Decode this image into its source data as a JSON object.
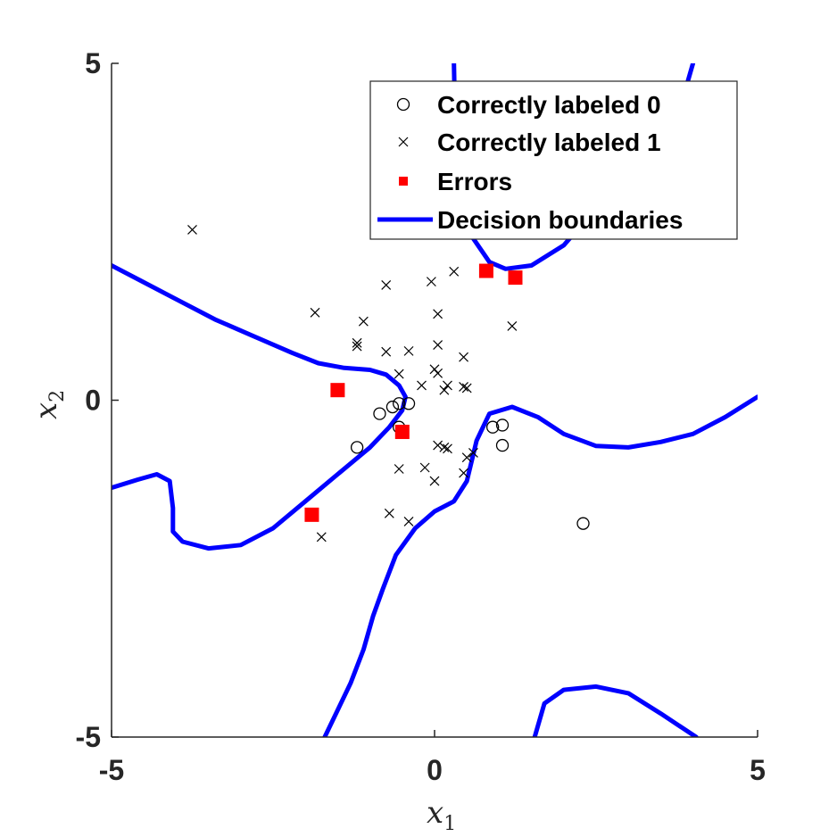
{
  "chart_data": {
    "type": "scatter",
    "xlabel": {
      "base": "x",
      "sub": "1"
    },
    "ylabel": {
      "base": "x",
      "sub": "2"
    },
    "xlim": [
      -5,
      5
    ],
    "ylim": [
      -5,
      5
    ],
    "xticks": [
      -5,
      0,
      5
    ],
    "yticks": [
      -5,
      0,
      5
    ],
    "grid": false,
    "legend_position": "top-right",
    "legend": [
      {
        "key": "class0",
        "label": "Correctly labeled 0",
        "marker": "circle"
      },
      {
        "key": "class1",
        "label": "Correctly labeled 1",
        "marker": "x"
      },
      {
        "key": "errors",
        "label": "Errors",
        "marker": "square"
      },
      {
        "key": "boundary",
        "label": "Decision boundaries",
        "marker": "line"
      }
    ],
    "colors": {
      "class0": "#000000",
      "class1": "#000000",
      "errors": "#ff0000",
      "boundary": "#0000ff"
    },
    "series": [
      {
        "key": "class0",
        "points": [
          [
            -1.2,
            -0.7
          ],
          [
            -0.85,
            -0.2
          ],
          [
            -0.65,
            -0.1
          ],
          [
            -0.55,
            -0.05
          ],
          [
            -0.4,
            -0.05
          ],
          [
            -0.55,
            -0.4
          ],
          [
            0.9,
            -0.4
          ],
          [
            1.05,
            -0.37
          ],
          [
            1.05,
            -0.67
          ],
          [
            2.3,
            -1.83
          ]
        ]
      },
      {
        "key": "class1",
        "points": [
          [
            -3.75,
            2.53
          ],
          [
            -1.85,
            1.3
          ],
          [
            -1.2,
            0.8
          ],
          [
            -1.2,
            0.85
          ],
          [
            -1.1,
            1.17
          ],
          [
            -0.75,
            1.71
          ],
          [
            -0.75,
            0.72
          ],
          [
            -0.4,
            0.73
          ],
          [
            -0.55,
            0.39
          ],
          [
            -0.2,
            0.22
          ],
          [
            0.0,
            0.46
          ],
          [
            0.05,
            0.4
          ],
          [
            0.05,
            0.82
          ],
          [
            0.05,
            1.28
          ],
          [
            -0.05,
            1.76
          ],
          [
            0.3,
            1.91
          ],
          [
            0.45,
            0.64
          ],
          [
            0.45,
            0.2
          ],
          [
            0.5,
            0.18
          ],
          [
            0.15,
            0.15
          ],
          [
            0.2,
            0.22
          ],
          [
            1.2,
            1.1
          ],
          [
            0.05,
            -0.67
          ],
          [
            0.15,
            -0.7
          ],
          [
            0.2,
            -0.72
          ],
          [
            0.6,
            -0.78
          ],
          [
            0.5,
            -0.85
          ],
          [
            0.45,
            -1.08
          ],
          [
            -0.15,
            -1.0
          ],
          [
            -0.55,
            -1.02
          ],
          [
            0.0,
            -1.2
          ],
          [
            -0.7,
            -1.68
          ],
          [
            -0.4,
            -1.8
          ],
          [
            -1.75,
            -2.03
          ]
        ]
      },
      {
        "key": "errors",
        "points": [
          [
            -1.5,
            0.15
          ],
          [
            -0.5,
            -0.47
          ],
          [
            0.8,
            1.92
          ],
          [
            1.25,
            1.82
          ],
          [
            -1.9,
            -1.7
          ]
        ]
      }
    ],
    "boundaries": [
      [
        [
          -5,
          2.0
        ],
        [
          -4.6,
          1.8
        ],
        [
          -4.0,
          1.5
        ],
        [
          -3.4,
          1.2
        ],
        [
          -2.8,
          0.95
        ],
        [
          -2.2,
          0.7
        ],
        [
          -1.8,
          0.55
        ],
        [
          -1.4,
          0.48
        ],
        [
          -1.0,
          0.45
        ],
        [
          -0.75,
          0.38
        ],
        [
          -0.55,
          0.22
        ],
        [
          -0.45,
          0.05
        ],
        [
          -0.5,
          -0.15
        ],
        [
          -0.7,
          -0.4
        ],
        [
          -1.0,
          -0.7
        ],
        [
          -1.5,
          -1.1
        ],
        [
          -2.0,
          -1.5
        ],
        [
          -2.5,
          -1.9
        ],
        [
          -3.0,
          -2.15
        ],
        [
          -3.5,
          -2.2
        ],
        [
          -3.9,
          -2.1
        ],
        [
          -4.05,
          -1.95
        ],
        [
          -4.05,
          -1.6
        ],
        [
          -4.1,
          -1.2
        ],
        [
          -4.3,
          -1.1
        ],
        [
          -4.6,
          -1.18
        ],
        [
          -5,
          -1.3
        ]
      ],
      [
        [
          -1.7,
          -5
        ],
        [
          -1.5,
          -4.6
        ],
        [
          -1.3,
          -4.2
        ],
        [
          -1.1,
          -3.7
        ],
        [
          -0.95,
          -3.2
        ],
        [
          -0.8,
          -2.8
        ],
        [
          -0.6,
          -2.3
        ],
        [
          -0.3,
          -1.9
        ],
        [
          0.0,
          -1.65
        ],
        [
          0.3,
          -1.5
        ],
        [
          0.5,
          -1.2
        ],
        [
          0.65,
          -0.6
        ],
        [
          0.85,
          -0.2
        ],
        [
          1.2,
          -0.1
        ],
        [
          1.6,
          -0.25
        ],
        [
          2.0,
          -0.5
        ],
        [
          2.5,
          -0.68
        ],
        [
          3.0,
          -0.7
        ],
        [
          3.5,
          -0.62
        ],
        [
          4.0,
          -0.5
        ],
        [
          4.5,
          -0.25
        ],
        [
          5.0,
          0.05
        ]
      ],
      [
        [
          1.55,
          -5
        ],
        [
          1.7,
          -4.5
        ],
        [
          2.0,
          -4.3
        ],
        [
          2.5,
          -4.25
        ],
        [
          3.0,
          -4.35
        ],
        [
          3.5,
          -4.65
        ],
        [
          4.05,
          -5
        ]
      ],
      [
        [
          0.3,
          5
        ],
        [
          0.32,
          4.0
        ],
        [
          0.45,
          3.0
        ],
        [
          0.6,
          2.4
        ],
        [
          0.85,
          2.05
        ],
        [
          1.1,
          1.95
        ],
        [
          1.5,
          2.0
        ],
        [
          2.0,
          2.3
        ],
        [
          2.5,
          2.85
        ],
        [
          3.0,
          3.4
        ],
        [
          3.5,
          3.9
        ],
        [
          3.85,
          4.5
        ],
        [
          4.0,
          5.0
        ]
      ]
    ]
  }
}
